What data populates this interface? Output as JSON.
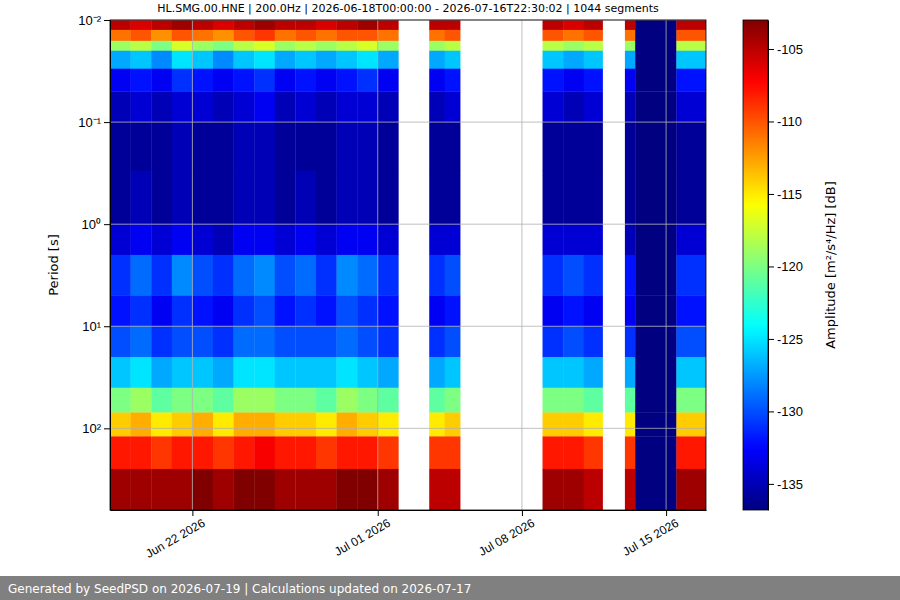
{
  "chart_data": {
    "type": "heatmap",
    "title": "HL.SMG.00.HNE | 200.0Hz | 2026-06-18T00:00:00 - 2026-07-16T22:30:02 | 1044 segments",
    "footer": "Generated by SeedPSD on 2026-07-19 | Calculations updated on 2026-07-17",
    "ylabel": "Period [s]",
    "log": "y",
    "grid": true,
    "xlim": [
      "2026-06-18T00:00:00",
      "2026-07-16T22:30:02"
    ],
    "xticks": [
      {
        "value": "2026-06-22T00:00:00",
        "label": "Jun 22 2026"
      },
      {
        "value": "2026-07-01T00:00:00",
        "label": "Jul 01 2026"
      },
      {
        "value": "2026-07-08T00:00:00",
        "label": "Jul 08 2026"
      },
      {
        "value": "2026-07-15T00:00:00",
        "label": "Jul 15 2026"
      }
    ],
    "ylim": [
      0.01,
      631
    ],
    "yticks": [
      {
        "value": 0.01,
        "label": "10⁻²"
      },
      {
        "value": 0.1,
        "label": "10⁻¹"
      },
      {
        "value": 1,
        "label": "10⁰"
      },
      {
        "value": 10,
        "label": "10¹"
      },
      {
        "value": 100,
        "label": "10²"
      }
    ],
    "period_edges": [
      0.01,
      0.0125,
      0.016,
      0.02,
      0.03,
      0.05,
      0.1,
      0.3,
      1,
      2,
      5,
      10,
      20,
      40,
      70,
      120,
      250,
      631
    ],
    "columns": [
      {
        "start": "2026-06-18T00:00:00",
        "end": "2026-06-19T00:00:00",
        "values": [
          -105,
          -111,
          -119,
          -127,
          -133,
          -135,
          -136,
          -136,
          -134,
          -131,
          -132,
          -130,
          -126,
          -120,
          -114,
          -108,
          -104
        ]
      },
      {
        "start": "2026-06-19T00:00:00",
        "end": "2026-06-20T00:00:00",
        "values": [
          -106,
          -110,
          -118,
          -126,
          -132,
          -134,
          -136,
          -135,
          -133,
          -129,
          -131,
          -129,
          -125,
          -119,
          -113,
          -108,
          -104
        ]
      },
      {
        "start": "2026-06-20T00:00:00",
        "end": "2026-06-21T00:00:00",
        "values": [
          -105,
          -112,
          -120,
          -128,
          -133,
          -135,
          -136,
          -136,
          -134,
          -131,
          -133,
          -131,
          -127,
          -121,
          -115,
          -109,
          -104
        ]
      },
      {
        "start": "2026-06-21T00:00:00",
        "end": "2026-06-22T00:00:00",
        "values": [
          -104,
          -110,
          -117,
          -125,
          -131,
          -134,
          -135,
          -135,
          -133,
          -128,
          -131,
          -130,
          -126,
          -120,
          -114,
          -108,
          -104
        ]
      },
      {
        "start": "2026-06-22T00:00:00",
        "end": "2026-06-23T00:00:00",
        "values": [
          -105,
          -111,
          -119,
          -126,
          -132,
          -134,
          -136,
          -136,
          -134,
          -130,
          -132,
          -130,
          -126,
          -120,
          -113,
          -108,
          -103
        ]
      },
      {
        "start": "2026-06-23T00:00:00",
        "end": "2026-06-24T00:00:00",
        "values": [
          -106,
          -112,
          -120,
          -128,
          -133,
          -135,
          -136,
          -136,
          -135,
          -131,
          -133,
          -131,
          -127,
          -121,
          -115,
          -109,
          -104
        ]
      },
      {
        "start": "2026-06-24T00:00:00",
        "end": "2026-06-25T00:00:00",
        "values": [
          -105,
          -110,
          -118,
          -126,
          -132,
          -134,
          -135,
          -135,
          -133,
          -129,
          -131,
          -129,
          -125,
          -119,
          -113,
          -108,
          -103
        ]
      },
      {
        "start": "2026-06-25T00:00:00",
        "end": "2026-06-26T00:00:00",
        "values": [
          -104,
          -109,
          -117,
          -125,
          -131,
          -133,
          -135,
          -135,
          -133,
          -128,
          -130,
          -129,
          -125,
          -119,
          -113,
          -107,
          -103
        ]
      },
      {
        "start": "2026-06-26T00:00:00",
        "end": "2026-06-27T00:00:00",
        "values": [
          -105,
          -111,
          -119,
          -127,
          -133,
          -135,
          -136,
          -136,
          -134,
          -130,
          -132,
          -130,
          -126,
          -120,
          -114,
          -108,
          -104
        ]
      },
      {
        "start": "2026-06-27T00:00:00",
        "end": "2026-06-28T00:00:00",
        "values": [
          -105,
          -110,
          -118,
          -126,
          -132,
          -134,
          -136,
          -135,
          -133,
          -129,
          -131,
          -130,
          -126,
          -120,
          -114,
          -108,
          -104
        ]
      },
      {
        "start": "2026-06-28T00:00:00",
        "end": "2026-06-29T00:00:00",
        "values": [
          -106,
          -111,
          -119,
          -127,
          -133,
          -135,
          -136,
          -136,
          -134,
          -131,
          -132,
          -130,
          -126,
          -121,
          -115,
          -109,
          -104
        ]
      },
      {
        "start": "2026-06-29T00:00:00",
        "end": "2026-06-30T00:00:00",
        "values": [
          -105,
          -110,
          -118,
          -126,
          -132,
          -134,
          -135,
          -135,
          -133,
          -128,
          -130,
          -129,
          -125,
          -119,
          -113,
          -108,
          -103
        ]
      },
      {
        "start": "2026-06-30T00:00:00",
        "end": "2026-07-01T00:00:00",
        "values": [
          -104,
          -110,
          -117,
          -125,
          -131,
          -134,
          -135,
          -135,
          -133,
          -129,
          -131,
          -130,
          -126,
          -120,
          -114,
          -108,
          -103
        ]
      },
      {
        "start": "2026-07-01T00:00:00",
        "end": "2026-07-02T00:00:00",
        "values": [
          -105,
          -111,
          -119,
          -127,
          -133,
          -135,
          -136,
          -136,
          -134,
          -131,
          -132,
          -131,
          -127,
          -121,
          -115,
          -109,
          -104
        ]
      },
      {
        "start": "2026-07-03T12:00:00",
        "end": "2026-07-04T06:00:00",
        "values": [
          -105,
          -111,
          -119,
          -127,
          -133,
          -135,
          -136,
          -136,
          -134,
          -131,
          -133,
          -131,
          -127,
          -121,
          -115,
          -109,
          -105
        ]
      },
      {
        "start": "2026-07-04T06:00:00",
        "end": "2026-07-05T00:00:00",
        "values": [
          -105,
          -110,
          -118,
          -126,
          -132,
          -134,
          -136,
          -136,
          -134,
          -130,
          -132,
          -130,
          -126,
          -120,
          -114,
          -109,
          -105
        ]
      },
      {
        "start": "2026-07-09T00:00:00",
        "end": "2026-07-10T00:00:00",
        "values": [
          -105,
          -110,
          -118,
          -126,
          -132,
          -134,
          -136,
          -136,
          -134,
          -131,
          -133,
          -131,
          -126,
          -120,
          -114,
          -108,
          -104
        ]
      },
      {
        "start": "2026-07-10T00:00:00",
        "end": "2026-07-11T00:00:00",
        "values": [
          -106,
          -111,
          -119,
          -127,
          -133,
          -135,
          -136,
          -136,
          -134,
          -130,
          -132,
          -130,
          -126,
          -120,
          -114,
          -108,
          -104
        ]
      },
      {
        "start": "2026-07-11T00:00:00",
        "end": "2026-07-11T22:00:00",
        "values": [
          -105,
          -110,
          -118,
          -126,
          -132,
          -134,
          -136,
          -136,
          -134,
          -131,
          -133,
          -131,
          -127,
          -121,
          -115,
          -109,
          -105
        ]
      },
      {
        "start": "2026-07-13T00:00:00",
        "end": "2026-07-13T12:00:00",
        "values": [
          -105,
          -111,
          -119,
          -127,
          -133,
          -135,
          -136,
          -136,
          -135,
          -132,
          -133,
          -131,
          -127,
          -121,
          -115,
          -109,
          -105
        ]
      },
      {
        "start": "2026-07-13T12:00:00",
        "end": "2026-07-15T12:00:00",
        "values": [
          -136.8,
          -136.8,
          -136.8,
          -136.8,
          -136.8,
          -136.8,
          -136.8,
          -136.8,
          -136.8,
          -136.8,
          -136.8,
          -136.8,
          -136.8,
          -136.8,
          -136.8,
          -136.8,
          -136.8
        ]
      },
      {
        "start": "2026-07-15T12:00:00",
        "end": "2026-07-16T22:30:02",
        "values": [
          -105,
          -110,
          -118,
          -126,
          -132,
          -134,
          -136,
          -136,
          -134,
          -131,
          -132,
          -130,
          -126,
          -120,
          -114,
          -108,
          -104
        ]
      }
    ],
    "colorbar": {
      "label": "Amplitude [m²/s⁴/Hz] [dB]",
      "range": [
        -136.8,
        -103
      ],
      "ticks": [
        -105,
        -110,
        -115,
        -120,
        -125,
        -130,
        -135
      ]
    }
  }
}
